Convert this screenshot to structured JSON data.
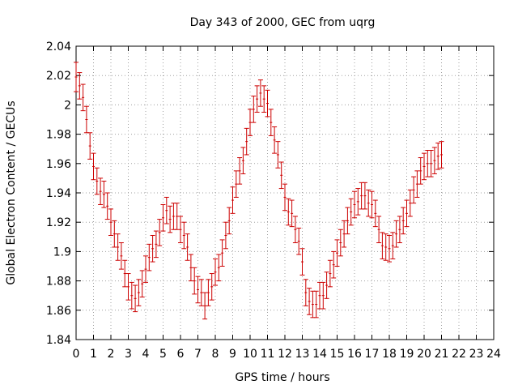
{
  "chart_data": {
    "type": "scatter",
    "title": "Day 343 of 2000, GEC from uqrg",
    "xlabel": "GPS time / hours",
    "ylabel": "Global Electron Content / GECUs",
    "xlim": [
      0,
      24
    ],
    "ylim": [
      1.84,
      2.04
    ],
    "grid": true,
    "x_ticks": [
      "0",
      "1",
      "2",
      "3",
      "4",
      "5",
      "6",
      "7",
      "8",
      "9",
      "10",
      "11",
      "12",
      "13",
      "14",
      "15",
      "16",
      "17",
      "18",
      "19",
      "20",
      "21",
      "22",
      "23",
      "24"
    ],
    "y_ticks": [
      "1.84",
      "1.86",
      "1.88",
      "1.9",
      "1.92",
      "1.94",
      "1.96",
      "1.98",
      "2",
      "2.02",
      "2.04"
    ],
    "series": [
      {
        "color": "#cc0000",
        "marker": "errorbar",
        "points": [
          {
            "x": 0.0,
            "y": 2.019,
            "err": 0.01
          },
          {
            "x": 0.2,
            "y": 2.013,
            "err": 0.009
          },
          {
            "x": 0.4,
            "y": 2.005,
            "err": 0.009
          },
          {
            "x": 0.6,
            "y": 1.99,
            "err": 0.009
          },
          {
            "x": 0.8,
            "y": 1.972,
            "err": 0.009
          },
          {
            "x": 1.0,
            "y": 1.958,
            "err": 0.009
          },
          {
            "x": 1.2,
            "y": 1.948,
            "err": 0.009
          },
          {
            "x": 1.4,
            "y": 1.941,
            "err": 0.009
          },
          {
            "x": 1.6,
            "y": 1.939,
            "err": 0.009
          },
          {
            "x": 1.8,
            "y": 1.931,
            "err": 0.009
          },
          {
            "x": 2.0,
            "y": 1.92,
            "err": 0.009
          },
          {
            "x": 2.2,
            "y": 1.912,
            "err": 0.009
          },
          {
            "x": 2.4,
            "y": 1.903,
            "err": 0.009
          },
          {
            "x": 2.6,
            "y": 1.897,
            "err": 0.009
          },
          {
            "x": 2.8,
            "y": 1.885,
            "err": 0.009
          },
          {
            "x": 3.0,
            "y": 1.876,
            "err": 0.009
          },
          {
            "x": 3.2,
            "y": 1.87,
            "err": 0.009
          },
          {
            "x": 3.4,
            "y": 1.868,
            "err": 0.009
          },
          {
            "x": 3.6,
            "y": 1.872,
            "err": 0.009
          },
          {
            "x": 3.8,
            "y": 1.878,
            "err": 0.009
          },
          {
            "x": 4.0,
            "y": 1.888,
            "err": 0.009
          },
          {
            "x": 4.2,
            "y": 1.896,
            "err": 0.009
          },
          {
            "x": 4.4,
            "y": 1.902,
            "err": 0.009
          },
          {
            "x": 4.6,
            "y": 1.905,
            "err": 0.009
          },
          {
            "x": 4.8,
            "y": 1.913,
            "err": 0.009
          },
          {
            "x": 5.0,
            "y": 1.923,
            "err": 0.009
          },
          {
            "x": 5.2,
            "y": 1.928,
            "err": 0.009
          },
          {
            "x": 5.4,
            "y": 1.922,
            "err": 0.009
          },
          {
            "x": 5.6,
            "y": 1.924,
            "err": 0.009
          },
          {
            "x": 5.8,
            "y": 1.924,
            "err": 0.009
          },
          {
            "x": 6.0,
            "y": 1.915,
            "err": 0.009
          },
          {
            "x": 6.2,
            "y": 1.911,
            "err": 0.009
          },
          {
            "x": 6.4,
            "y": 1.903,
            "err": 0.009
          },
          {
            "x": 6.6,
            "y": 1.889,
            "err": 0.009
          },
          {
            "x": 6.8,
            "y": 1.88,
            "err": 0.009
          },
          {
            "x": 7.0,
            "y": 1.874,
            "err": 0.009
          },
          {
            "x": 7.2,
            "y": 1.872,
            "err": 0.009
          },
          {
            "x": 7.4,
            "y": 1.863,
            "err": 0.009
          },
          {
            "x": 7.6,
            "y": 1.872,
            "err": 0.009
          },
          {
            "x": 7.8,
            "y": 1.876,
            "err": 0.009
          },
          {
            "x": 8.0,
            "y": 1.886,
            "err": 0.009
          },
          {
            "x": 8.2,
            "y": 1.889,
            "err": 0.009
          },
          {
            "x": 8.4,
            "y": 1.899,
            "err": 0.009
          },
          {
            "x": 8.6,
            "y": 1.911,
            "err": 0.009
          },
          {
            "x": 8.8,
            "y": 1.921,
            "err": 0.009
          },
          {
            "x": 9.0,
            "y": 1.935,
            "err": 0.009
          },
          {
            "x": 9.2,
            "y": 1.946,
            "err": 0.009
          },
          {
            "x": 9.4,
            "y": 1.955,
            "err": 0.009
          },
          {
            "x": 9.6,
            "y": 1.962,
            "err": 0.009
          },
          {
            "x": 9.8,
            "y": 1.975,
            "err": 0.009
          },
          {
            "x": 10.0,
            "y": 1.988,
            "err": 0.009
          },
          {
            "x": 10.2,
            "y": 1.997,
            "err": 0.009
          },
          {
            "x": 10.4,
            "y": 2.004,
            "err": 0.009
          },
          {
            "x": 10.6,
            "y": 2.008,
            "err": 0.009
          },
          {
            "x": 10.8,
            "y": 2.004,
            "err": 0.009
          },
          {
            "x": 11.0,
            "y": 2.001,
            "err": 0.009
          },
          {
            "x": 11.2,
            "y": 1.988,
            "err": 0.009
          },
          {
            "x": 11.4,
            "y": 1.976,
            "err": 0.009
          },
          {
            "x": 11.6,
            "y": 1.966,
            "err": 0.009
          },
          {
            "x": 11.8,
            "y": 1.952,
            "err": 0.009
          },
          {
            "x": 12.0,
            "y": 1.937,
            "err": 0.009
          },
          {
            "x": 12.2,
            "y": 1.927,
            "err": 0.009
          },
          {
            "x": 12.4,
            "y": 1.926,
            "err": 0.009
          },
          {
            "x": 12.6,
            "y": 1.915,
            "err": 0.009
          },
          {
            "x": 12.8,
            "y": 1.907,
            "err": 0.009
          },
          {
            "x": 13.0,
            "y": 1.893,
            "err": 0.009
          },
          {
            "x": 13.2,
            "y": 1.872,
            "err": 0.009
          },
          {
            "x": 13.4,
            "y": 1.866,
            "err": 0.009
          },
          {
            "x": 13.6,
            "y": 1.864,
            "err": 0.009
          },
          {
            "x": 13.8,
            "y": 1.864,
            "err": 0.009
          },
          {
            "x": 14.0,
            "y": 1.87,
            "err": 0.009
          },
          {
            "x": 14.2,
            "y": 1.87,
            "err": 0.009
          },
          {
            "x": 14.4,
            "y": 1.877,
            "err": 0.009
          },
          {
            "x": 14.6,
            "y": 1.885,
            "err": 0.009
          },
          {
            "x": 14.8,
            "y": 1.891,
            "err": 0.009
          },
          {
            "x": 15.0,
            "y": 1.899,
            "err": 0.009
          },
          {
            "x": 15.2,
            "y": 1.906,
            "err": 0.009
          },
          {
            "x": 15.4,
            "y": 1.912,
            "err": 0.009
          },
          {
            "x": 15.6,
            "y": 1.921,
            "err": 0.009
          },
          {
            "x": 15.8,
            "y": 1.927,
            "err": 0.009
          },
          {
            "x": 16.0,
            "y": 1.932,
            "err": 0.009
          },
          {
            "x": 16.2,
            "y": 1.934,
            "err": 0.009
          },
          {
            "x": 16.4,
            "y": 1.938,
            "err": 0.009
          },
          {
            "x": 16.6,
            "y": 1.938,
            "err": 0.009
          },
          {
            "x": 16.8,
            "y": 1.933,
            "err": 0.009
          },
          {
            "x": 17.0,
            "y": 1.932,
            "err": 0.009
          },
          {
            "x": 17.2,
            "y": 1.926,
            "err": 0.009
          },
          {
            "x": 17.4,
            "y": 1.915,
            "err": 0.009
          },
          {
            "x": 17.6,
            "y": 1.904,
            "err": 0.009
          },
          {
            "x": 17.8,
            "y": 1.903,
            "err": 0.009
          },
          {
            "x": 18.0,
            "y": 1.902,
            "err": 0.009
          },
          {
            "x": 18.2,
            "y": 1.904,
            "err": 0.009
          },
          {
            "x": 18.4,
            "y": 1.912,
            "err": 0.009
          },
          {
            "x": 18.6,
            "y": 1.915,
            "err": 0.009
          },
          {
            "x": 18.8,
            "y": 1.921,
            "err": 0.009
          },
          {
            "x": 19.0,
            "y": 1.926,
            "err": 0.009
          },
          {
            "x": 19.2,
            "y": 1.933,
            "err": 0.009
          },
          {
            "x": 19.4,
            "y": 1.942,
            "err": 0.009
          },
          {
            "x": 19.6,
            "y": 1.946,
            "err": 0.009
          },
          {
            "x": 19.8,
            "y": 1.955,
            "err": 0.009
          },
          {
            "x": 20.0,
            "y": 1.958,
            "err": 0.009
          },
          {
            "x": 20.2,
            "y": 1.96,
            "err": 0.009
          },
          {
            "x": 20.4,
            "y": 1.96,
            "err": 0.009
          },
          {
            "x": 20.6,
            "y": 1.962,
            "err": 0.009
          },
          {
            "x": 20.8,
            "y": 1.965,
            "err": 0.009
          },
          {
            "x": 21.0,
            "y": 1.966,
            "err": 0.009
          }
        ]
      }
    ]
  }
}
